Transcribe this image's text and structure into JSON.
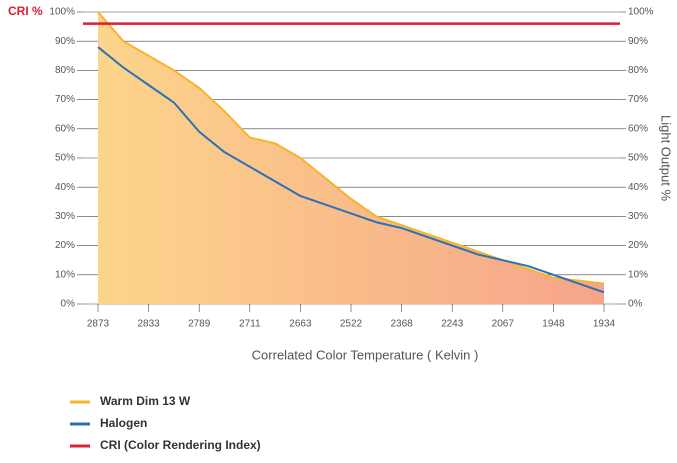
{
  "chart_data": {
    "type": "line",
    "categories": [
      "2873",
      null,
      "2833",
      null,
      "2789",
      null,
      "2711",
      null,
      "2663",
      null,
      "2522",
      null,
      "2368",
      null,
      "2243",
      null,
      "2067",
      null,
      "1948",
      null,
      "1934"
    ],
    "x_label": "Correlated Color Temperature ( Kelvin )",
    "y_label": "CRI %",
    "y2_label": "Light Output %",
    "series": [
      {
        "name": "Warm Dim 13 W",
        "color": "#f5b52a",
        "area": true,
        "values": [
          100,
          90,
          85,
          80,
          74,
          66,
          57,
          55,
          50,
          43,
          36,
          30,
          27,
          24,
          21,
          18,
          15,
          12,
          9,
          8,
          7
        ]
      },
      {
        "name": "Halogen",
        "color": "#2a72b5",
        "values": [
          88,
          81,
          75,
          69,
          59,
          52,
          47,
          42,
          37,
          34,
          31,
          28,
          26,
          23,
          20,
          17,
          15,
          13,
          10,
          7,
          4
        ]
      }
    ],
    "reference_line": {
      "name": "CRI (Color Rendering Index)",
      "color": "#d6213b",
      "value": 96
    },
    "ylim": [
      0,
      100
    ],
    "yticks": [
      {
        "value": 0,
        "label": "0%"
      },
      {
        "value": 10,
        "label": "10%"
      },
      {
        "value": 20,
        "label": "20%"
      },
      {
        "value": 30,
        "label": "30%"
      },
      {
        "value": 40,
        "label": "40%"
      },
      {
        "value": 50,
        "label": "50%"
      },
      {
        "value": 60,
        "label": "60%"
      },
      {
        "value": 70,
        "label": "70%"
      },
      {
        "value": 80,
        "label": "80%"
      },
      {
        "value": 90,
        "label": "90%"
      },
      {
        "value": 100,
        "label": "100%"
      }
    ],
    "y2lim": [
      0,
      100
    ],
    "y2ticks": [
      {
        "value": 0,
        "label": "0%"
      },
      {
        "value": 10,
        "label": "10%"
      },
      {
        "value": 20,
        "label": "20%"
      },
      {
        "value": 30,
        "label": "30%"
      },
      {
        "value": 40,
        "label": "40%"
      },
      {
        "value": 50,
        "label": "50%"
      },
      {
        "value": 60,
        "label": "60%"
      },
      {
        "value": 70,
        "label": "70%"
      },
      {
        "value": 80,
        "label": "80%"
      },
      {
        "value": 90,
        "label": "90%"
      },
      {
        "value": 100,
        "label": "100%"
      }
    ],
    "grid": true
  }
}
